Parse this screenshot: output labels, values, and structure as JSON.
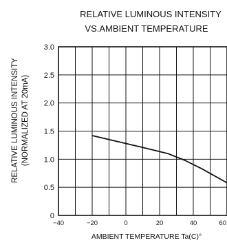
{
  "chart_data": {
    "type": "line",
    "title_lines": [
      "RELATIVE LUMINOUS INTENSITY",
      "VS.AMBIENT TEMPERATURE"
    ],
    "ylabel_lines": [
      "RELATIVE LUMINOUS INTENSITY",
      "(NORMALIZED AT 20mA)"
    ],
    "xlabel": "AMBIENT TEMPERATURE Ta(C)°",
    "xlim": [
      -40,
      60
    ],
    "ylim": [
      0,
      3.0
    ],
    "x_ticks": [
      {
        "value": -40,
        "label": "−40"
      },
      {
        "value": -20,
        "label": "−20"
      },
      {
        "value": 0,
        "label": "0"
      },
      {
        "value": 20,
        "label": "20"
      },
      {
        "value": 40,
        "label": "40"
      },
      {
        "value": 60,
        "label": "60"
      }
    ],
    "y_ticks": [
      {
        "value": 0,
        "label": "0"
      },
      {
        "value": 0.5,
        "label": "0.5"
      },
      {
        "value": 1.0,
        "label": "1.0"
      },
      {
        "value": 1.5,
        "label": "1.5"
      },
      {
        "value": 2.0,
        "label": "2.0"
      },
      {
        "value": 2.5,
        "label": "2.5"
      },
      {
        "value": 3.0,
        "label": "3.0"
      }
    ],
    "grid": true,
    "series": [
      {
        "x": [
          -20,
          -10,
          0,
          10,
          25,
          35,
          45,
          60
        ],
        "y": [
          1.42,
          1.35,
          1.28,
          1.21,
          1.1,
          0.98,
          0.83,
          0.58
        ]
      }
    ]
  }
}
